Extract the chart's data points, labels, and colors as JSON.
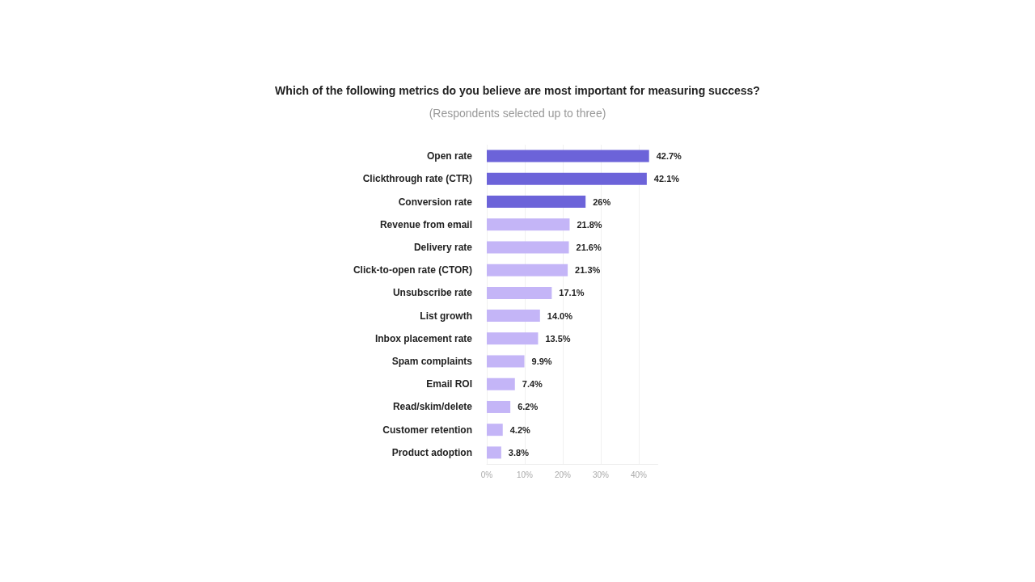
{
  "chart_data": {
    "type": "bar",
    "orientation": "horizontal",
    "title": "Which of the following metrics do you believe are most important for measuring success?",
    "subtitle": "(Respondents selected up to three)",
    "categories": [
      "Open rate",
      "Clickthrough rate (CTR)",
      "Conversion rate",
      "Revenue from email",
      "Delivery rate",
      "Click-to-open rate (CTOR)",
      "Unsubscribe rate",
      "List growth",
      "Inbox placement rate",
      "Spam complaints",
      "Email ROI",
      "Read/skim/delete",
      "Customer retention",
      "Product adoption"
    ],
    "values": [
      42.7,
      42.1,
      26,
      21.8,
      21.6,
      21.3,
      17.1,
      14.0,
      13.5,
      9.9,
      7.4,
      6.2,
      4.2,
      3.8
    ],
    "value_labels": [
      "42.7%",
      "42.1%",
      "26%",
      "21.8%",
      "21.6%",
      "21.3%",
      "17.1%",
      "14.0%",
      "13.5%",
      "9.9%",
      "7.4%",
      "6.2%",
      "4.2%",
      "3.8%"
    ],
    "colors": [
      "#6c63d9",
      "#6c63d9",
      "#6c63d9",
      "#c4b5f7",
      "#c4b5f7",
      "#c4b5f7",
      "#c4b5f7",
      "#c4b5f7",
      "#c4b5f7",
      "#c4b5f7",
      "#c4b5f7",
      "#c4b5f7",
      "#c4b5f7",
      "#c4b5f7"
    ],
    "xlim": [
      0,
      45
    ],
    "xticks": [
      {
        "value": 0,
        "label": "0%"
      },
      {
        "value": 10,
        "label": "10%"
      },
      {
        "value": 20,
        "label": "20%"
      },
      {
        "value": 30,
        "label": "30%"
      },
      {
        "value": 40,
        "label": "40%"
      }
    ],
    "grid": "x"
  }
}
